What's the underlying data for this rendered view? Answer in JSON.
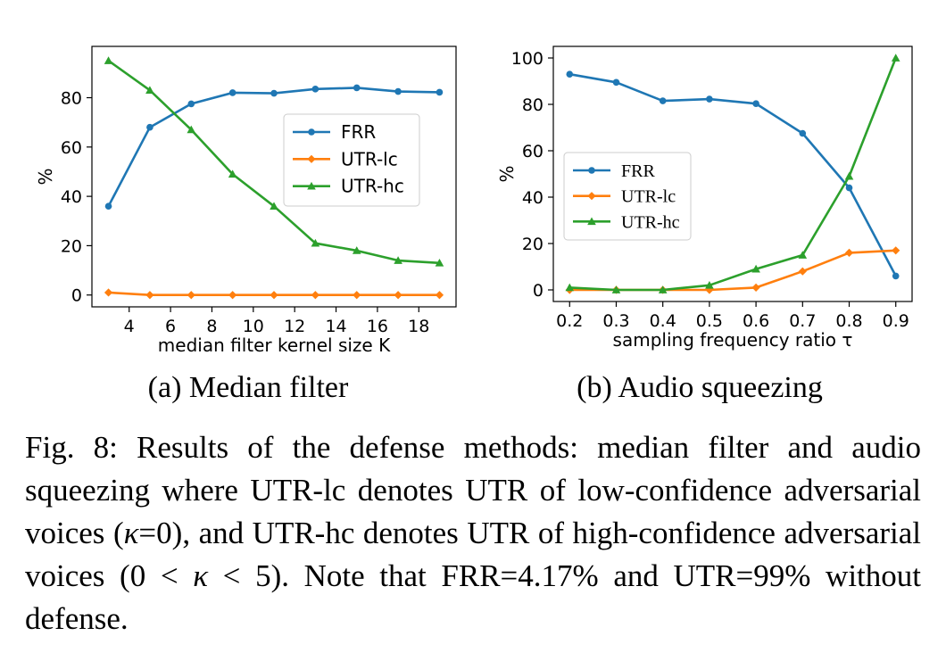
{
  "colors": {
    "FRR": "#1f77b4",
    "UTR-lc": "#ff7f0e",
    "UTR-hc": "#2ca02c"
  },
  "chart_data": [
    {
      "type": "line",
      "caption": "(a) Median filter",
      "xlabel": "median filter kernel size K",
      "ylabel": "%",
      "xlim": [
        2.2,
        19.8
      ],
      "ylim": [
        -4.8,
        100.8
      ],
      "xticks": [
        4,
        6,
        8,
        10,
        12,
        14,
        16,
        18
      ],
      "yticks": [
        0,
        20,
        40,
        60,
        80
      ],
      "legend_position": "right",
      "x": [
        3,
        5,
        7,
        9,
        11,
        13,
        15,
        17,
        19
      ],
      "series": [
        {
          "name": "FRR",
          "marker": "circle",
          "values": [
            36,
            68,
            77.5,
            82,
            81.8,
            83.5,
            84,
            82.5,
            82.2
          ]
        },
        {
          "name": "UTR-lc",
          "marker": "diamond",
          "values": [
            1,
            0,
            0,
            0,
            0,
            0,
            0,
            0,
            0
          ]
        },
        {
          "name": "UTR-hc",
          "marker": "triangle",
          "values": [
            95,
            83,
            67,
            49,
            36,
            21,
            18,
            14,
            13
          ]
        }
      ]
    },
    {
      "type": "line",
      "caption": "(b) Audio squeezing",
      "xlabel": "sampling frequency ratio τ",
      "ylabel": "%",
      "xlim": [
        0.165,
        0.935
      ],
      "ylim": [
        -5,
        105
      ],
      "xticks": [
        0.2,
        0.3,
        0.4,
        0.5,
        0.6,
        0.7,
        0.8,
        0.9
      ],
      "yticks": [
        0,
        20,
        40,
        60,
        80,
        100
      ],
      "legend_position": "center-left",
      "x": [
        0.2,
        0.3,
        0.4,
        0.5,
        0.6,
        0.7,
        0.8,
        0.9
      ],
      "series": [
        {
          "name": "FRR",
          "marker": "circle",
          "values": [
            93,
            89.5,
            81.5,
            82.3,
            80.3,
            67.5,
            44,
            6
          ]
        },
        {
          "name": "UTR-lc",
          "marker": "diamond",
          "values": [
            0,
            0,
            0,
            0,
            1,
            8,
            16,
            17
          ]
        },
        {
          "name": "UTR-hc",
          "marker": "triangle",
          "values": [
            1,
            0,
            0,
            2,
            9,
            15,
            49,
            100
          ]
        }
      ]
    }
  ],
  "caption": {
    "prefix": "Fig. 8: Results of the defense methods: median filter and audio squeezing where UTR-lc denotes UTR of low-confidence adversarial voices (",
    "kappa1": "κ",
    "mid1": "=0), and UTR-hc denotes UTR of high-confidence adversarial voices (0 < ",
    "kappa2": "κ",
    "mid2": " < 5). Note that FRR=4.17% and UTR=99% without defense."
  }
}
